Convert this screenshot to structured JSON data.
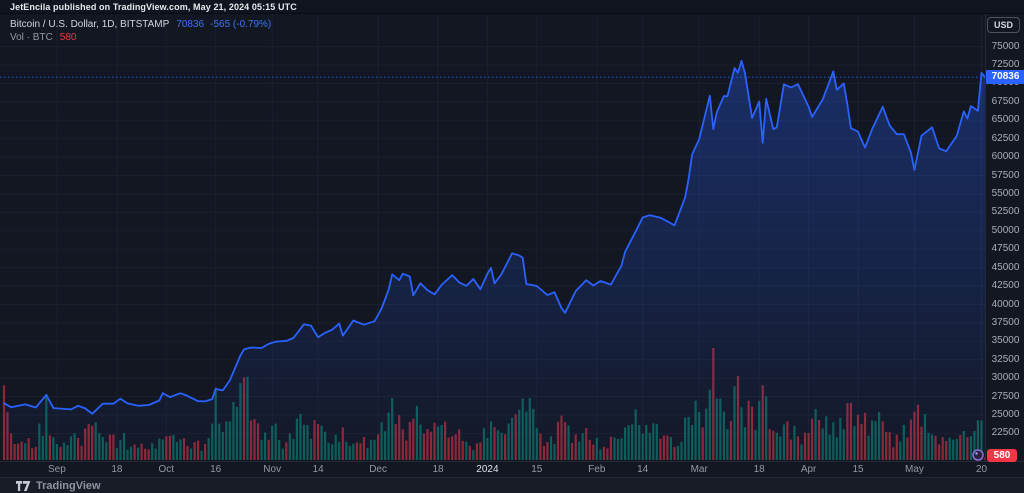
{
  "attribution": {
    "text": "JetEncila published on TradingView.com, May 21, 2024 05:15 UTC"
  },
  "legend": {
    "symbol_title": "Bitcoin / U.S. Dollar, 1D, BITSTAMP",
    "price": "70836",
    "change": "-565 (-0.79%)",
    "volume_label": "Vol · BTC",
    "volume_value": "580"
  },
  "currency_button": "USD",
  "price_badge": "70836",
  "volume_badge": "580",
  "footer": {
    "brand": "TradingView"
  },
  "colors": {
    "background": "#131722",
    "line_blue": "#2962ff",
    "badge_blue": "#2962ff",
    "volume_up": "#089981",
    "volume_down": "#f23645",
    "axis_text": "#a8acb6",
    "grid": "#222738"
  },
  "chart_data": {
    "type": "area",
    "title": "Bitcoin / U.S. Dollar, 1D, BITSTAMP",
    "subtitle": "Vol · BTC",
    "last_price": 70836,
    "change": -565,
    "change_pct": -0.79,
    "last_volume_btc": 580,
    "legend_position": "top-left",
    "grid": true,
    "price_axis": {
      "min": 22500,
      "max": 75000,
      "step": 2500,
      "side": "right"
    },
    "x_domain": {
      "start": "2023-08-17",
      "end": "2024-05-21"
    },
    "time_ticks": [
      {
        "label": "Sep",
        "date": "2023-09-01",
        "bright": false
      },
      {
        "label": "18",
        "date": "2023-09-18",
        "bright": false
      },
      {
        "label": "Oct",
        "date": "2023-10-02",
        "bright": false
      },
      {
        "label": "16",
        "date": "2023-10-16",
        "bright": false
      },
      {
        "label": "Nov",
        "date": "2023-11-01",
        "bright": false
      },
      {
        "label": "14",
        "date": "2023-11-14",
        "bright": false
      },
      {
        "label": "Dec",
        "date": "2023-12-01",
        "bright": false
      },
      {
        "label": "18",
        "date": "2023-12-18",
        "bright": false
      },
      {
        "label": "2024",
        "date": "2024-01-01",
        "bright": true
      },
      {
        "label": "15",
        "date": "2024-01-15",
        "bright": false
      },
      {
        "label": "Feb",
        "date": "2024-02-01",
        "bright": false
      },
      {
        "label": "14",
        "date": "2024-02-14",
        "bright": false
      },
      {
        "label": "Mar",
        "date": "2024-03-01",
        "bright": false
      },
      {
        "label": "18",
        "date": "2024-03-18",
        "bright": false
      },
      {
        "label": "Apr",
        "date": "2024-04-01",
        "bright": false
      },
      {
        "label": "15",
        "date": "2024-04-15",
        "bright": false
      },
      {
        "label": "May",
        "date": "2024-05-01",
        "bright": false
      },
      {
        "label": "20",
        "date": "2024-05-20",
        "bright": false
      }
    ],
    "series_price": [
      [
        "2023-08-17",
        26600
      ],
      [
        "2023-08-19",
        26050
      ],
      [
        "2023-08-23",
        26430
      ],
      [
        "2023-08-26",
        26010
      ],
      [
        "2023-08-29",
        27720
      ],
      [
        "2023-08-31",
        25940
      ],
      [
        "2023-09-02",
        25870
      ],
      [
        "2023-09-05",
        25760
      ],
      [
        "2023-09-07",
        26250
      ],
      [
        "2023-09-09",
        25900
      ],
      [
        "2023-09-11",
        25160
      ],
      [
        "2023-09-14",
        26550
      ],
      [
        "2023-09-17",
        26530
      ],
      [
        "2023-09-19",
        27210
      ],
      [
        "2023-09-21",
        26570
      ],
      [
        "2023-09-24",
        26250
      ],
      [
        "2023-09-27",
        26350
      ],
      [
        "2023-09-30",
        26960
      ],
      [
        "2023-10-01",
        27970
      ],
      [
        "2023-10-03",
        27430
      ],
      [
        "2023-10-06",
        27950
      ],
      [
        "2023-10-08",
        27590
      ],
      [
        "2023-10-11",
        26870
      ],
      [
        "2023-10-13",
        26850
      ],
      [
        "2023-10-15",
        27160
      ],
      [
        "2023-10-16",
        28520
      ],
      [
        "2023-10-18",
        28330
      ],
      [
        "2023-10-20",
        29680
      ],
      [
        "2023-10-23",
        33080
      ],
      [
        "2023-10-24",
        33900
      ],
      [
        "2023-10-26",
        34160
      ],
      [
        "2023-10-29",
        34090
      ],
      [
        "2023-10-31",
        34650
      ],
      [
        "2023-11-02",
        34940
      ],
      [
        "2023-11-05",
        35050
      ],
      [
        "2023-11-07",
        35450
      ],
      [
        "2023-11-09",
        36700
      ],
      [
        "2023-11-10",
        37310
      ],
      [
        "2023-11-12",
        37130
      ],
      [
        "2023-11-14",
        35550
      ],
      [
        "2023-11-16",
        36160
      ],
      [
        "2023-11-18",
        36570
      ],
      [
        "2023-11-20",
        37420
      ],
      [
        "2023-11-21",
        35780
      ],
      [
        "2023-11-24",
        37820
      ],
      [
        "2023-11-27",
        37250
      ],
      [
        "2023-11-30",
        37720
      ],
      [
        "2023-12-02",
        39450
      ],
      [
        "2023-12-04",
        41990
      ],
      [
        "2023-12-05",
        44080
      ],
      [
        "2023-12-07",
        43290
      ],
      [
        "2023-12-08",
        44170
      ],
      [
        "2023-12-10",
        43790
      ],
      [
        "2023-12-11",
        41240
      ],
      [
        "2023-12-13",
        42870
      ],
      [
        "2023-12-15",
        41940
      ],
      [
        "2023-12-17",
        41370
      ],
      [
        "2023-12-19",
        42660
      ],
      [
        "2023-12-22",
        43980
      ],
      [
        "2023-12-24",
        42990
      ],
      [
        "2023-12-26",
        42520
      ],
      [
        "2023-12-28",
        43450
      ],
      [
        "2023-12-30",
        42070
      ],
      [
        "2024-01-01",
        44180
      ],
      [
        "2024-01-02",
        44960
      ],
      [
        "2024-01-03",
        42840
      ],
      [
        "2024-01-05",
        44150
      ],
      [
        "2024-01-08",
        46950
      ],
      [
        "2024-01-10",
        46650
      ],
      [
        "2024-01-11",
        46340
      ],
      [
        "2024-01-12",
        42780
      ],
      [
        "2024-01-15",
        42510
      ],
      [
        "2024-01-18",
        41270
      ],
      [
        "2024-01-20",
        41660
      ],
      [
        "2024-01-22",
        39510
      ],
      [
        "2024-01-23",
        38870
      ],
      [
        "2024-01-26",
        41820
      ],
      [
        "2024-01-29",
        43300
      ],
      [
        "2024-01-31",
        42580
      ],
      [
        "2024-02-02",
        43190
      ],
      [
        "2024-02-05",
        42690
      ],
      [
        "2024-02-08",
        45290
      ],
      [
        "2024-02-09",
        47150
      ],
      [
        "2024-02-12",
        49920
      ],
      [
        "2024-02-14",
        51800
      ],
      [
        "2024-02-16",
        52120
      ],
      [
        "2024-02-19",
        51780
      ],
      [
        "2024-02-21",
        51280
      ],
      [
        "2024-02-23",
        50730
      ],
      [
        "2024-02-26",
        54500
      ],
      [
        "2024-02-27",
        57040
      ],
      [
        "2024-02-28",
        60360
      ],
      [
        "2024-03-01",
        62440
      ],
      [
        "2024-03-04",
        68330
      ],
      [
        "2024-03-05",
        63800
      ],
      [
        "2024-03-06",
        66100
      ],
      [
        "2024-03-08",
        68300
      ],
      [
        "2024-03-09",
        68250
      ],
      [
        "2024-03-11",
        72080
      ],
      [
        "2024-03-12",
        71450
      ],
      [
        "2024-03-13",
        73080
      ],
      [
        "2024-03-14",
        71390
      ],
      [
        "2024-03-16",
        65310
      ],
      [
        "2024-03-18",
        67550
      ],
      [
        "2024-03-19",
        61940
      ],
      [
        "2024-03-20",
        67910
      ],
      [
        "2024-03-22",
        63790
      ],
      [
        "2024-03-23",
        64040
      ],
      [
        "2024-03-25",
        69880
      ],
      [
        "2024-03-27",
        69460
      ],
      [
        "2024-03-29",
        69890
      ],
      [
        "2024-04-01",
        66840
      ],
      [
        "2024-04-02",
        65450
      ],
      [
        "2024-04-05",
        67840
      ],
      [
        "2024-04-08",
        71630
      ],
      [
        "2024-04-09",
        69140
      ],
      [
        "2024-04-11",
        70000
      ],
      [
        "2024-04-12",
        67120
      ],
      [
        "2024-04-13",
        63920
      ],
      [
        "2024-04-15",
        63450
      ],
      [
        "2024-04-17",
        61280
      ],
      [
        "2024-04-19",
        63780
      ],
      [
        "2024-04-22",
        66840
      ],
      [
        "2024-04-24",
        64280
      ],
      [
        "2024-04-26",
        63110
      ],
      [
        "2024-04-28",
        63120
      ],
      [
        "2024-04-30",
        60640
      ],
      [
        "2024-05-01",
        58250
      ],
      [
        "2024-05-03",
        62900
      ],
      [
        "2024-05-06",
        64050
      ],
      [
        "2024-05-08",
        61180
      ],
      [
        "2024-05-10",
        60790
      ],
      [
        "2024-05-13",
        62900
      ],
      [
        "2024-05-15",
        66200
      ],
      [
        "2024-05-16",
        65230
      ],
      [
        "2024-05-17",
        66940
      ],
      [
        "2024-05-19",
        66270
      ],
      [
        "2024-05-20",
        71440
      ],
      [
        "2024-05-21",
        70836
      ]
    ],
    "volume_profile_btc": [
      [
        "2023-08-17",
        17000
      ],
      [
        "2023-08-19",
        6000
      ],
      [
        "2023-08-22",
        4200
      ],
      [
        "2023-08-26",
        3000
      ],
      [
        "2023-08-29",
        15000
      ],
      [
        "2023-08-31",
        5200
      ],
      [
        "2023-09-04",
        3400
      ],
      [
        "2023-09-11",
        7800
      ],
      [
        "2023-09-14",
        5200
      ],
      [
        "2023-09-19",
        4600
      ],
      [
        "2023-09-24",
        2800
      ],
      [
        "2023-09-28",
        3800
      ],
      [
        "2023-10-02",
        5400
      ],
      [
        "2023-10-08",
        3200
      ],
      [
        "2023-10-13",
        3600
      ],
      [
        "2023-10-16",
        16500
      ],
      [
        "2023-10-18",
        6400
      ],
      [
        "2023-10-20",
        8800
      ],
      [
        "2023-10-23",
        17500
      ],
      [
        "2023-10-24",
        18800
      ],
      [
        "2023-10-26",
        9000
      ],
      [
        "2023-10-29",
        4600
      ],
      [
        "2023-11-01",
        7800
      ],
      [
        "2023-11-05",
        4000
      ],
      [
        "2023-11-09",
        10500
      ],
      [
        "2023-11-12",
        4800
      ],
      [
        "2023-11-14",
        8200
      ],
      [
        "2023-11-18",
        3600
      ],
      [
        "2023-11-21",
        7400
      ],
      [
        "2023-11-26",
        3800
      ],
      [
        "2023-11-30",
        4600
      ],
      [
        "2023-12-04",
        10800
      ],
      [
        "2023-12-06",
        8200
      ],
      [
        "2023-12-08",
        7000
      ],
      [
        "2023-12-11",
        9400
      ],
      [
        "2023-12-14",
        6000
      ],
      [
        "2023-12-18",
        7600
      ],
      [
        "2023-12-22",
        5400
      ],
      [
        "2023-12-26",
        4200
      ],
      [
        "2023-12-30",
        4000
      ],
      [
        "2024-01-02",
        8800
      ],
      [
        "2024-01-05",
        6200
      ],
      [
        "2024-01-09",
        10400
      ],
      [
        "2024-01-11",
        14000
      ],
      [
        "2024-01-12",
        11000
      ],
      [
        "2024-01-16",
        6000
      ],
      [
        "2024-01-19",
        5400
      ],
      [
        "2024-01-23",
        8600
      ],
      [
        "2024-01-26",
        5800
      ],
      [
        "2024-01-30",
        4600
      ],
      [
        "2024-02-03",
        3000
      ],
      [
        "2024-02-07",
        4800
      ],
      [
        "2024-02-09",
        7400
      ],
      [
        "2024-02-13",
        8000
      ],
      [
        "2024-02-16",
        6200
      ],
      [
        "2024-02-20",
        5600
      ],
      [
        "2024-02-24",
        3200
      ],
      [
        "2024-02-27",
        9800
      ],
      [
        "2024-02-29",
        13500
      ],
      [
        "2024-03-02",
        7400
      ],
      [
        "2024-03-04",
        16000
      ],
      [
        "2024-03-05",
        25500
      ],
      [
        "2024-03-06",
        14000
      ],
      [
        "2024-03-08",
        11000
      ],
      [
        "2024-03-11",
        16800
      ],
      [
        "2024-03-13",
        12000
      ],
      [
        "2024-03-15",
        13500
      ],
      [
        "2024-03-17",
        6800
      ],
      [
        "2024-03-19",
        17000
      ],
      [
        "2024-03-20",
        14500
      ],
      [
        "2024-03-23",
        6200
      ],
      [
        "2024-03-26",
        8800
      ],
      [
        "2024-03-29",
        5400
      ],
      [
        "2024-04-02",
        9400
      ],
      [
        "2024-04-05",
        7200
      ],
      [
        "2024-04-08",
        8600
      ],
      [
        "2024-04-11",
        7000
      ],
      [
        "2024-04-13",
        13000
      ],
      [
        "2024-04-16",
        8200
      ],
      [
        "2024-04-19",
        9000
      ],
      [
        "2024-04-23",
        6400
      ],
      [
        "2024-04-27",
        4200
      ],
      [
        "2024-04-30",
        9200
      ],
      [
        "2024-05-01",
        11000
      ],
      [
        "2024-05-03",
        7600
      ],
      [
        "2024-05-06",
        5800
      ],
      [
        "2024-05-09",
        5200
      ],
      [
        "2024-05-13",
        4800
      ],
      [
        "2024-05-15",
        6600
      ],
      [
        "2024-05-17",
        5400
      ],
      [
        "2024-05-20",
        9000
      ],
      [
        "2024-05-21",
        580
      ]
    ],
    "volume_max_btc": 25500
  }
}
